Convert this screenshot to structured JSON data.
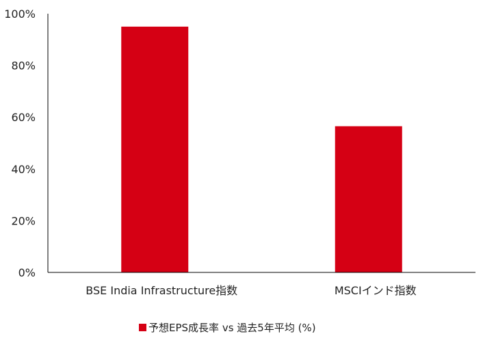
{
  "chart_data": {
    "type": "bar",
    "categories": [
      "BSE India Infrastructure指数",
      "MSCIインド指数"
    ],
    "series": [
      {
        "name": "予想EPS成長率 vs 過去5年平均 (%)",
        "values": [
          95,
          56.5
        ],
        "color": "#d50014"
      }
    ],
    "ylim": [
      0,
      100
    ],
    "yticks": [
      0,
      20,
      40,
      60,
      80,
      100
    ],
    "ytick_labels": [
      "0%",
      "20%",
      "40%",
      "60%",
      "80%",
      "100%"
    ],
    "grid": false,
    "legend_position": "bottom"
  }
}
